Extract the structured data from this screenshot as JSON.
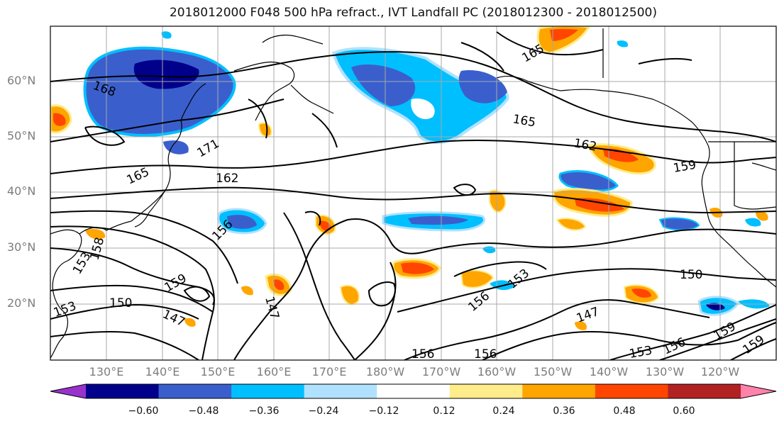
{
  "title": "2018012000 F048 500 hPa refract., IVT Landfall PC (2018012300 - 2018012500)",
  "latitude_labels": [
    "60°N",
    "50°N",
    "40°N",
    "30°N",
    "20°N"
  ],
  "longitude_labels": [
    "130°E",
    "140°E",
    "150°E",
    "160°E",
    "170°E",
    "180°W",
    "170°W",
    "160°W",
    "150°W",
    "140°W",
    "130°W",
    "120°W"
  ],
  "contour_labels": [
    "168",
    "171",
    "165",
    "162",
    "156",
    "158",
    "153",
    "159",
    "150",
    "147",
    "147",
    "153",
    "165",
    "165",
    "162",
    "159",
    "150",
    "153",
    "156",
    "147",
    "156",
    "156",
    "153",
    "156",
    "159",
    "159"
  ],
  "colorbar": {
    "ticks": [
      "−0.60",
      "−0.48",
      "−0.36",
      "−0.24",
      "−0.12",
      "0.12",
      "0.24",
      "0.36",
      "0.48",
      "0.60"
    ],
    "colors": [
      "#9932cc",
      "#00008b",
      "#3a5fcd",
      "#00bfff",
      "#b0e2ff",
      "#ffffff",
      "#ffec8b",
      "#ffa500",
      "#ff4500",
      "#b22222",
      "#ff82ab"
    ]
  }
}
